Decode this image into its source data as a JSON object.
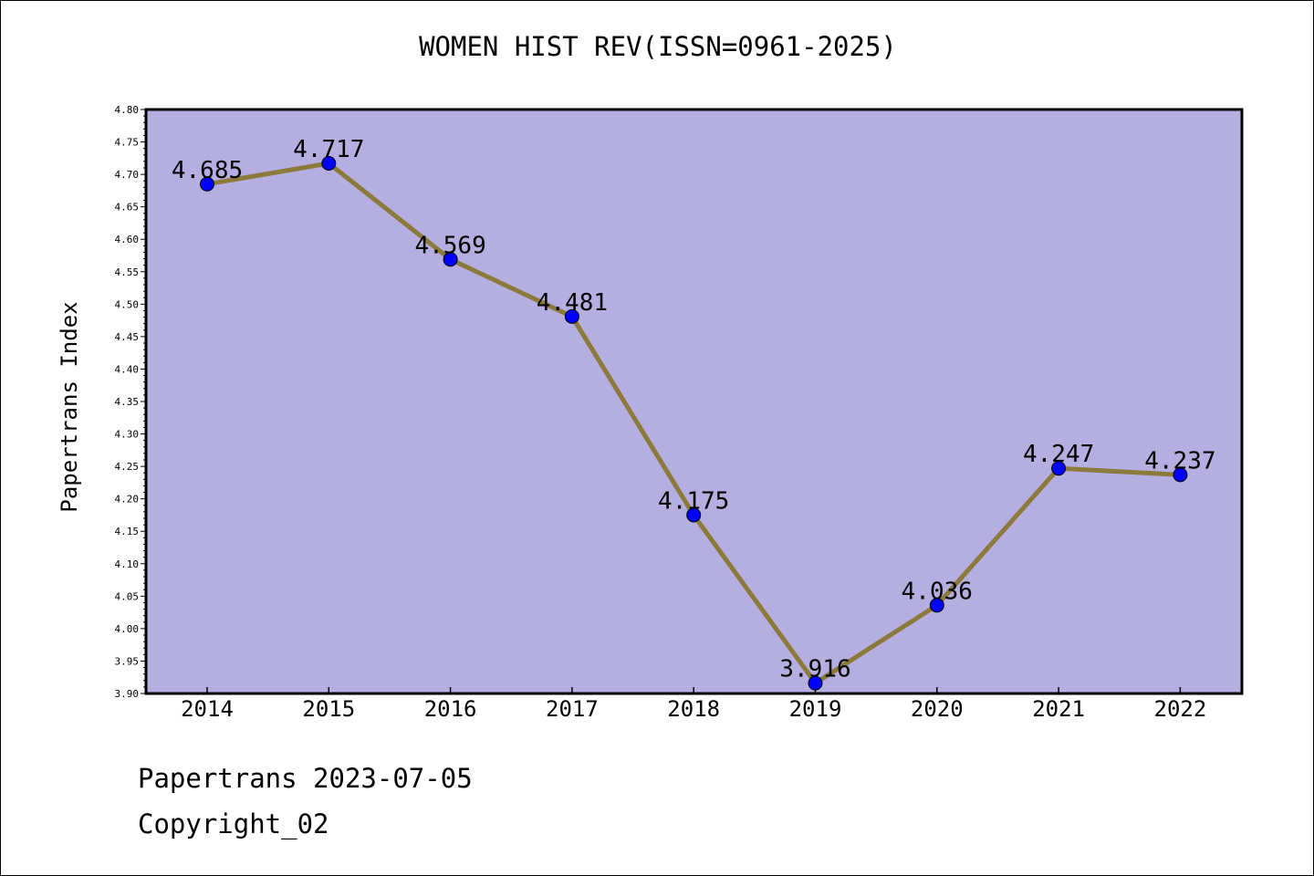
{
  "chart_data": {
    "type": "line",
    "title": "WOMEN HIST REV(ISSN=0961-2025)",
    "xlabel": "",
    "ylabel": "Papertrans Index",
    "categories": [
      "2014",
      "2015",
      "2016",
      "2017",
      "2018",
      "2019",
      "2020",
      "2021",
      "2022"
    ],
    "series": [
      {
        "values": [
          4.685,
          4.717,
          4.569,
          4.481,
          4.175,
          3.916,
          4.036,
          4.247,
          4.237
        ]
      }
    ],
    "data_labels": [
      "4.685",
      "4.717",
      "4.569",
      "4.481",
      "4.175",
      "3.916",
      "4.036",
      "4.247",
      "4.237"
    ],
    "ylim": [
      3.9,
      4.8
    ],
    "yticks": [
      "3.90",
      "3.95",
      "4.00",
      "4.05",
      "4.10",
      "4.15",
      "4.20",
      "4.25",
      "4.30",
      "4.35",
      "4.40",
      "4.45",
      "4.50",
      "4.55",
      "4.60",
      "4.65",
      "4.70",
      "4.75",
      "4.80"
    ],
    "grid": false,
    "legend": "none",
    "colors": {
      "plot_background": "#b5aee1",
      "line": "#8b7a3a",
      "marker": "#0000ff"
    }
  },
  "footer": {
    "line1": "Papertrans 2023-07-05",
    "line2": "Copyright_02"
  }
}
